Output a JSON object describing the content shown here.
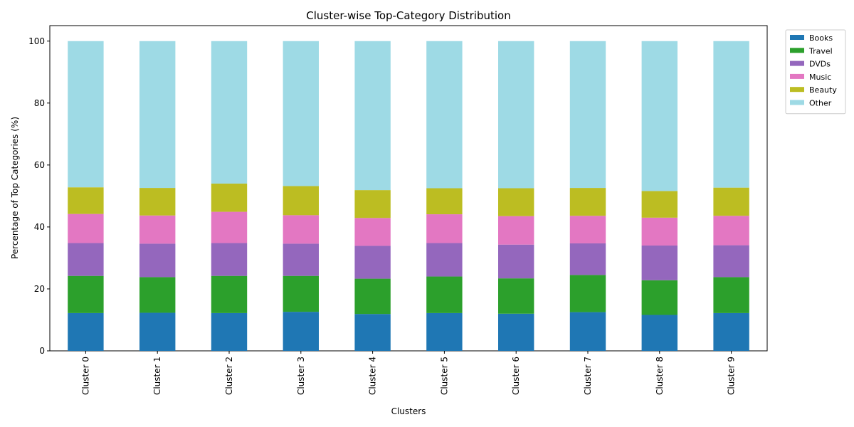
{
  "chart_data": {
    "type": "bar",
    "stacked": true,
    "title": "Cluster-wise Top-Category Distribution",
    "xlabel": "Clusters",
    "ylabel": "Percentage of Top Categories (%)",
    "ylim": [
      0,
      105
    ],
    "yticks": [
      0,
      20,
      40,
      60,
      80,
      100
    ],
    "grid": false,
    "legend_position": "top-right outside",
    "categories": [
      "Cluster 0",
      "Cluster 1",
      "Cluster 2",
      "Cluster 3",
      "Cluster 4",
      "Cluster 5",
      "Cluster 6",
      "Cluster 7",
      "Cluster 8",
      "Cluster 9"
    ],
    "series": [
      {
        "name": "Books",
        "color": "#1f77b4",
        "values": [
          12.2,
          12.3,
          12.2,
          12.6,
          11.9,
          12.2,
          12.0,
          12.5,
          11.6,
          12.2
        ]
      },
      {
        "name": "Travel",
        "color": "#2ca02c",
        "values": [
          12.0,
          11.5,
          12.0,
          11.6,
          11.4,
          11.8,
          11.4,
          12.0,
          11.2,
          11.6
        ]
      },
      {
        "name": "DVDs",
        "color": "#9467bd",
        "values": [
          10.6,
          10.8,
          10.6,
          10.4,
          10.6,
          10.8,
          10.9,
          10.2,
          11.2,
          10.3
        ]
      },
      {
        "name": "Music",
        "color": "#e377c2",
        "values": [
          9.4,
          9.1,
          10.1,
          9.2,
          9.0,
          9.3,
          9.2,
          8.9,
          9.0,
          9.5
        ]
      },
      {
        "name": "Beauty",
        "color": "#bcbd22",
        "values": [
          8.6,
          8.9,
          9.1,
          9.4,
          9.0,
          8.4,
          9.0,
          9.0,
          8.6,
          9.1
        ]
      },
      {
        "name": "Other",
        "color": "#9edae5",
        "values": [
          47.2,
          47.4,
          46.0,
          46.8,
          48.1,
          47.5,
          47.5,
          47.4,
          48.4,
          47.3
        ]
      }
    ]
  }
}
